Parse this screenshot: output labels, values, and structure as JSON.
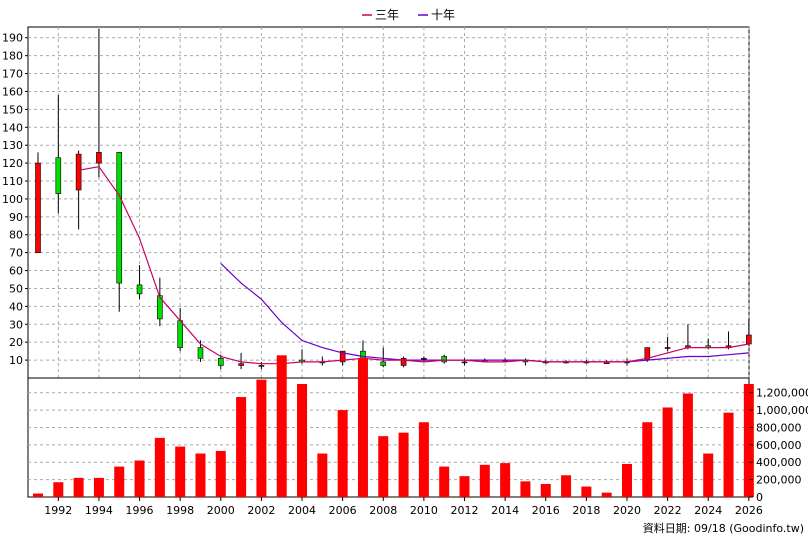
{
  "chart_data": {
    "type": "candlestick",
    "legend": [
      {
        "label": "三年",
        "color": "#cc0066"
      },
      {
        "label": "十年",
        "color": "#6600cc"
      }
    ],
    "price_axis": {
      "ticks": [
        10,
        20,
        30,
        40,
        50,
        60,
        70,
        80,
        90,
        100,
        110,
        120,
        130,
        140,
        150,
        160,
        170,
        180,
        190
      ],
      "min": 0,
      "max": 196
    },
    "volume_axis": {
      "ticks": [
        "0",
        "200,000",
        "400,000",
        "600,000",
        "800,000",
        "1,000,000",
        "1,200,000"
      ],
      "min": 0,
      "max": 1300000
    },
    "x_axis_labels": [
      "1992",
      "1994",
      "1996",
      "1998",
      "2000",
      "2002",
      "2004",
      "2006",
      "2008",
      "2010",
      "2012",
      "2014",
      "2016",
      "2018",
      "2020",
      "2022",
      "2024",
      "2026"
    ],
    "years": [
      1991,
      1992,
      1993,
      1994,
      1995,
      1996,
      1997,
      1998,
      1999,
      2000,
      2001,
      2002,
      2003,
      2004,
      2005,
      2006,
      2007,
      2008,
      2009,
      2010,
      2011,
      2012,
      2013,
      2014,
      2015,
      2016,
      2017,
      2018,
      2019,
      2020,
      2021,
      2022,
      2023,
      2024,
      2025,
      2026
    ],
    "ohlc": [
      {
        "open": 70,
        "high": 126,
        "low": 70,
        "close": 120
      },
      {
        "open": 123,
        "high": 158,
        "low": 92,
        "close": 103
      },
      {
        "open": 105,
        "high": 127,
        "low": 83,
        "close": 125
      },
      {
        "open": 120,
        "high": 195,
        "low": 112,
        "close": 126
      },
      {
        "open": 126,
        "high": 126,
        "low": 37,
        "close": 53
      },
      {
        "open": 52,
        "high": 63,
        "low": 44,
        "close": 47
      },
      {
        "open": 46,
        "high": 56,
        "low": 29,
        "close": 33
      },
      {
        "open": 32,
        "high": 39,
        "low": 15,
        "close": 17
      },
      {
        "open": 17,
        "high": 21,
        "low": 9,
        "close": 11
      },
      {
        "open": 11,
        "high": 13,
        "low": 5,
        "close": 7
      },
      {
        "open": 7,
        "high": 14,
        "low": 5,
        "close": 8
      },
      {
        "open": 7,
        "high": 9,
        "low": 5,
        "close": 7
      },
      {
        "open": 8,
        "high": 12,
        "low": 6,
        "close": 10
      },
      {
        "open": 10,
        "high": 16,
        "low": 8,
        "close": 9
      },
      {
        "open": 9,
        "high": 12,
        "low": 7,
        "close": 9
      },
      {
        "open": 9,
        "high": 15,
        "low": 7,
        "close": 15
      },
      {
        "open": 15,
        "high": 21,
        "low": 8,
        "close": 9
      },
      {
        "open": 9,
        "high": 17,
        "low": 6,
        "close": 7
      },
      {
        "open": 7,
        "high": 12,
        "low": 6,
        "close": 11
      },
      {
        "open": 11,
        "high": 12,
        "low": 9,
        "close": 11
      },
      {
        "open": 12,
        "high": 13,
        "low": 8,
        "close": 9
      },
      {
        "open": 9,
        "high": 11,
        "low": 7,
        "close": 9
      },
      {
        "open": 9,
        "high": 11,
        "low": 9,
        "close": 10
      },
      {
        "open": 10,
        "high": 11,
        "low": 9,
        "close": 10
      },
      {
        "open": 10,
        "high": 11,
        "low": 7,
        "close": 9
      },
      {
        "open": 9,
        "high": 10,
        "low": 8,
        "close": 9
      },
      {
        "open": 9,
        "high": 10,
        "low": 8,
        "close": 9
      },
      {
        "open": 9,
        "high": 10,
        "low": 8,
        "close": 9
      },
      {
        "open": 8,
        "high": 10,
        "low": 8,
        "close": 9
      },
      {
        "open": 9,
        "high": 11,
        "low": 7,
        "close": 9
      },
      {
        "open": 10,
        "high": 17,
        "low": 9,
        "close": 17
      },
      {
        "open": 17,
        "high": 23,
        "low": 15,
        "close": 17
      },
      {
        "open": 17,
        "high": 30,
        "low": 16,
        "close": 18
      },
      {
        "open": 18,
        "high": 22,
        "low": 16,
        "close": 17
      },
      {
        "open": 17,
        "high": 26,
        "low": 16,
        "close": 18
      },
      {
        "open": 19,
        "high": 33,
        "low": 18,
        "close": 24
      }
    ],
    "ma_3yr": [
      null,
      null,
      116,
      118,
      102,
      78,
      45,
      32,
      19,
      12,
      9,
      8,
      8,
      9,
      9,
      10,
      11,
      10,
      10,
      9,
      10,
      10,
      9,
      9,
      10,
      9,
      9,
      9,
      9,
      9,
      11,
      14,
      17,
      17,
      17,
      19
    ],
    "ma_10yr": [
      null,
      null,
      null,
      null,
      null,
      null,
      null,
      null,
      null,
      64,
      53,
      44,
      31,
      21,
      17,
      14,
      12,
      11,
      10,
      10,
      10,
      10,
      10,
      10,
      10,
      9,
      9,
      9,
      9,
      9,
      10,
      11,
      12,
      12,
      13,
      14
    ],
    "volume": [
      40000,
      170000,
      220000,
      220000,
      350000,
      420000,
      680000,
      580000,
      500000,
      530000,
      1150000,
      1350000,
      1630000,
      1300000,
      500000,
      1000000,
      1600000,
      700000,
      740000,
      860000,
      350000,
      240000,
      370000,
      390000,
      180000,
      150000,
      250000,
      120000,
      50000,
      380000,
      860000,
      1030000,
      1190000,
      500000,
      970000,
      1300000
    ]
  },
  "footer": {
    "source": "資料日期: 09/18  (Goodinfo.tw)"
  }
}
